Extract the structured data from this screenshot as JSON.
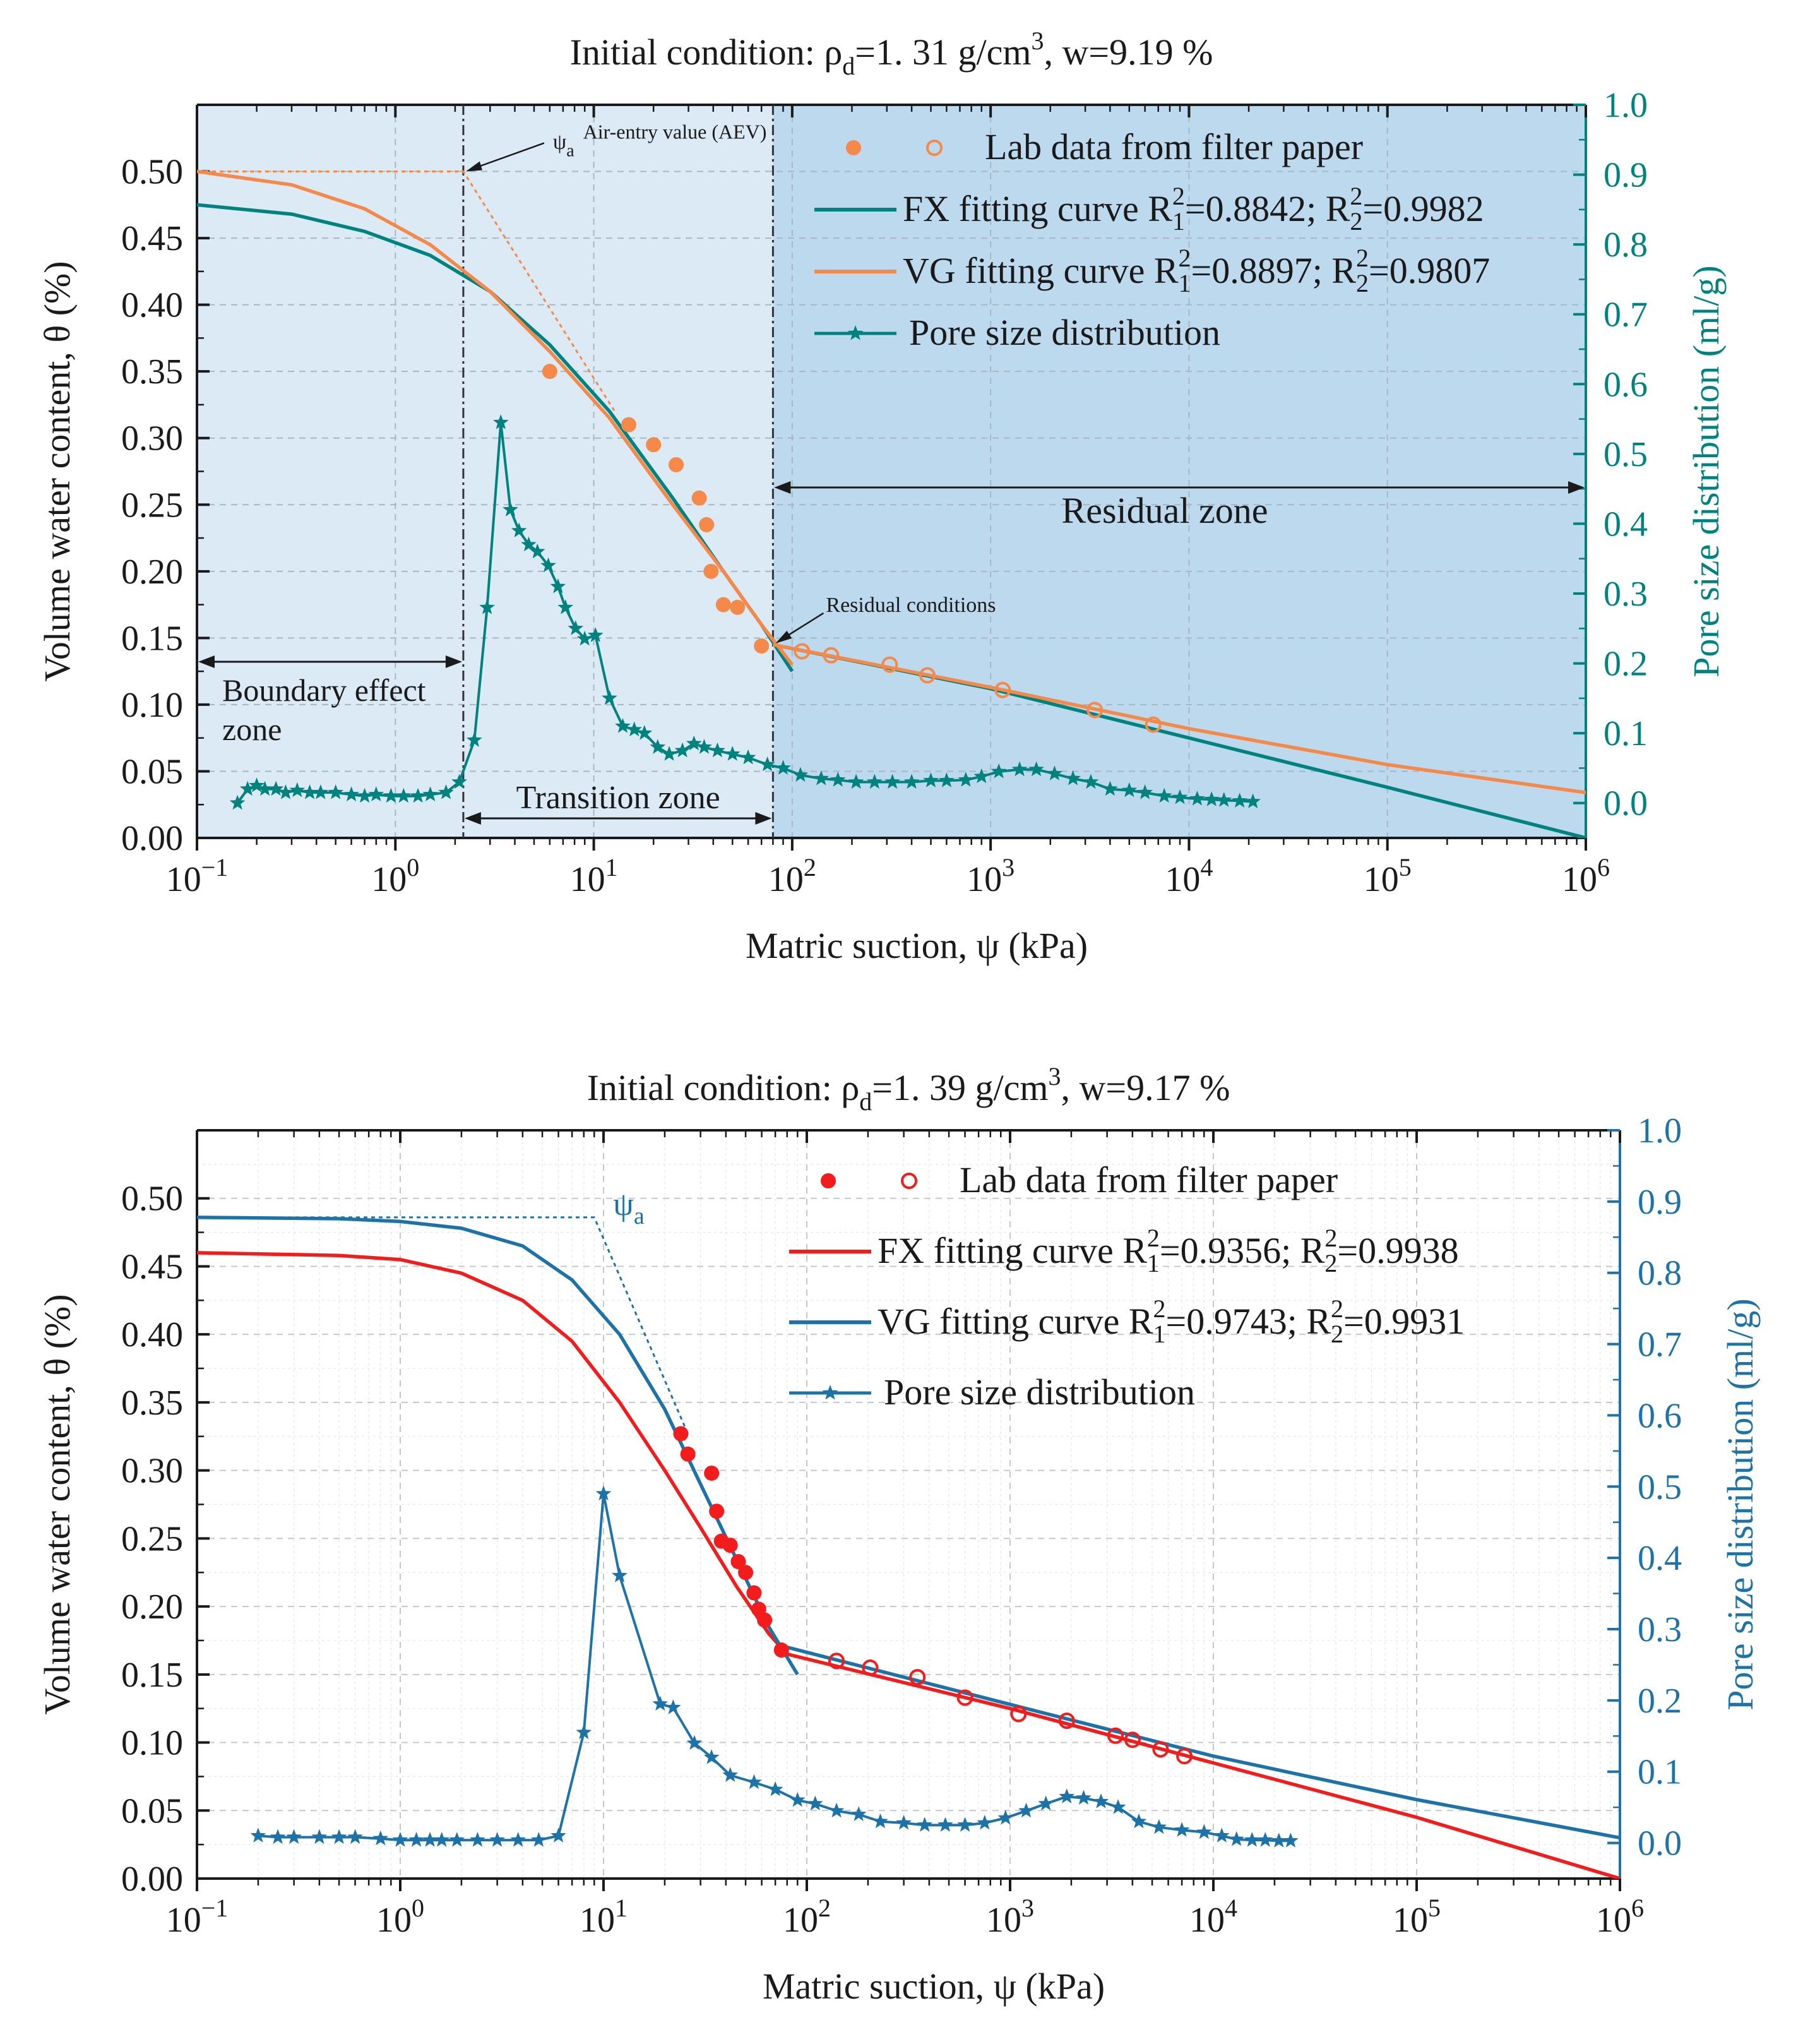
{
  "chart_data": [
    {
      "type": "line",
      "title_prefix": "Initial condition: ρ",
      "title_sub": "d",
      "title_mid": "=1. 31 g/cm",
      "title_sup": "3",
      "title_suffix": ",  w=9.19 %",
      "xlabel": "Matric suction, ψ (kPa)",
      "ylabel": "Volume water content, θ (%)",
      "y2label": "Pore size distribution (ml/g)",
      "xscale": "log",
      "xlim": [
        0.1,
        1000000
      ],
      "ylim": [
        0,
        0.55
      ],
      "y2lim": [
        -0.05,
        1.0
      ],
      "x_ticks": [
        {
          "base": "10",
          "exp": "−1"
        },
        {
          "base": "10",
          "exp": "0"
        },
        {
          "base": "10",
          "exp": "1"
        },
        {
          "base": "10",
          "exp": "2"
        },
        {
          "base": "10",
          "exp": "3"
        },
        {
          "base": "10",
          "exp": "4"
        },
        {
          "base": "10",
          "exp": "5"
        },
        {
          "base": "10",
          "exp": "6"
        }
      ],
      "y_ticks": [
        "0.00",
        "0.05",
        "0.10",
        "0.15",
        "0.20",
        "0.25",
        "0.30",
        "0.35",
        "0.40",
        "0.45",
        "0.50"
      ],
      "y2_ticks": [
        "0.0",
        "0.1",
        "0.2",
        "0.3",
        "0.4",
        "0.5",
        "0.6",
        "0.7",
        "0.8",
        "0.9",
        "1.0"
      ],
      "colors": {
        "fx": "#00827f",
        "vg": "#f5894a",
        "lab": "#f5894a",
        "psd": "#00827f",
        "right_axis": "#00827f",
        "zone_bg": "#dbeaf5",
        "residual_bg": "#bcd9ee"
      },
      "legend": {
        "lab": "Lab data from filter paper",
        "fx_label": "FX fitting curve R",
        "fx_r1": "=0.8842; R",
        "fx_r2": "=0.9982",
        "vg_label": "VG fitting curve  R",
        "vg_r1": "=0.8897; R",
        "vg_r2": "=0.9807",
        "psd": "Pore size distribution",
        "sup2": "2",
        "sub1": "1",
        "sub2": "2"
      },
      "annotations": {
        "aev_psi": "ψ",
        "aev_sub": "a",
        "aev_text": "Air-entry value (AEV)",
        "residual_conditions": "Residual conditions",
        "residual_zone": "Residual zone",
        "boundary_zone_1": "Boundary effect",
        "boundary_zone_2": "zone",
        "transition_zone": "Transition zone"
      },
      "aev": {
        "x": 2.2,
        "y": 0.5
      },
      "residual": {
        "x": 80,
        "y": 0.145
      },
      "lab_filled": [
        {
          "x": 6,
          "y": 0.35
        },
        {
          "x": 15,
          "y": 0.31
        },
        {
          "x": 20,
          "y": 0.295
        },
        {
          "x": 26,
          "y": 0.28
        },
        {
          "x": 34,
          "y": 0.255
        },
        {
          "x": 37,
          "y": 0.235
        },
        {
          "x": 39,
          "y": 0.2
        },
        {
          "x": 45,
          "y": 0.175
        },
        {
          "x": 53,
          "y": 0.173
        },
        {
          "x": 70,
          "y": 0.144
        }
      ],
      "lab_open": [
        {
          "x": 112,
          "y": 0.14
        },
        {
          "x": 157,
          "y": 0.137
        },
        {
          "x": 310,
          "y": 0.13
        },
        {
          "x": 480,
          "y": 0.122
        },
        {
          "x": 1150,
          "y": 0.111
        },
        {
          "x": 3350,
          "y": 0.096
        },
        {
          "x": 6600,
          "y": 0.085
        }
      ],
      "fx_curve": [
        {
          "x": 0.1,
          "y": 0.475
        },
        {
          "x": 0.3,
          "y": 0.468
        },
        {
          "x": 0.7,
          "y": 0.455
        },
        {
          "x": 1.5,
          "y": 0.437
        },
        {
          "x": 3,
          "y": 0.41
        },
        {
          "x": 6,
          "y": 0.37
        },
        {
          "x": 12,
          "y": 0.32
        },
        {
          "x": 25,
          "y": 0.255
        },
        {
          "x": 45,
          "y": 0.2
        },
        {
          "x": 70,
          "y": 0.16
        },
        {
          "x": 100,
          "y": 0.125
        }
      ],
      "fx_residual": [
        {
          "x": 80,
          "y": 0.145
        },
        {
          "x": 1000,
          "y": 0.112
        },
        {
          "x": 10000,
          "y": 0.075
        },
        {
          "x": 100000,
          "y": 0.038
        },
        {
          "x": 1000000,
          "y": 0.0
        }
      ],
      "vg_curve": [
        {
          "x": 0.1,
          "y": 0.5
        },
        {
          "x": 0.3,
          "y": 0.49
        },
        {
          "x": 0.7,
          "y": 0.472
        },
        {
          "x": 1.5,
          "y": 0.445
        },
        {
          "x": 3,
          "y": 0.41
        },
        {
          "x": 6,
          "y": 0.365
        },
        {
          "x": 12,
          "y": 0.315
        },
        {
          "x": 25,
          "y": 0.25
        },
        {
          "x": 45,
          "y": 0.2
        },
        {
          "x": 70,
          "y": 0.16
        },
        {
          "x": 100,
          "y": 0.13
        }
      ],
      "vg_residual": [
        {
          "x": 80,
          "y": 0.145
        },
        {
          "x": 1000,
          "y": 0.113
        },
        {
          "x": 10000,
          "y": 0.082
        },
        {
          "x": 100000,
          "y": 0.055
        },
        {
          "x": 1000000,
          "y": 0.034
        }
      ],
      "aev_tangent": [
        {
          "x": 0.1,
          "y": 0.5
        },
        {
          "x": 2.2,
          "y": 0.5
        },
        {
          "x": 13,
          "y": 0.318
        }
      ],
      "psd": [
        {
          "x": 0.16,
          "y": 0.0
        },
        {
          "x": 0.18,
          "y": 0.02
        },
        {
          "x": 0.2,
          "y": 0.025
        },
        {
          "x": 0.22,
          "y": 0.02
        },
        {
          "x": 0.25,
          "y": 0.02
        },
        {
          "x": 0.28,
          "y": 0.015
        },
        {
          "x": 0.32,
          "y": 0.018
        },
        {
          "x": 0.37,
          "y": 0.015
        },
        {
          "x": 0.42,
          "y": 0.015
        },
        {
          "x": 0.5,
          "y": 0.015
        },
        {
          "x": 0.6,
          "y": 0.012
        },
        {
          "x": 0.7,
          "y": 0.01
        },
        {
          "x": 0.8,
          "y": 0.012
        },
        {
          "x": 0.95,
          "y": 0.01
        },
        {
          "x": 1.1,
          "y": 0.01
        },
        {
          "x": 1.3,
          "y": 0.01
        },
        {
          "x": 1.5,
          "y": 0.012
        },
        {
          "x": 1.8,
          "y": 0.015
        },
        {
          "x": 2.1,
          "y": 0.03
        },
        {
          "x": 2.5,
          "y": 0.09
        },
        {
          "x": 2.9,
          "y": 0.28
        },
        {
          "x": 3.4,
          "y": 0.545
        },
        {
          "x": 3.8,
          "y": 0.42
        },
        {
          "x": 4.2,
          "y": 0.39
        },
        {
          "x": 4.7,
          "y": 0.37
        },
        {
          "x": 5.2,
          "y": 0.36
        },
        {
          "x": 5.9,
          "y": 0.34
        },
        {
          "x": 6.6,
          "y": 0.31
        },
        {
          "x": 7.2,
          "y": 0.28
        },
        {
          "x": 8.1,
          "y": 0.25
        },
        {
          "x": 9.0,
          "y": 0.235
        },
        {
          "x": 10.2,
          "y": 0.24
        },
        {
          "x": 12,
          "y": 0.15
        },
        {
          "x": 14,
          "y": 0.11
        },
        {
          "x": 16,
          "y": 0.105
        },
        {
          "x": 18,
          "y": 0.1
        },
        {
          "x": 21,
          "y": 0.08
        },
        {
          "x": 24,
          "y": 0.07
        },
        {
          "x": 28,
          "y": 0.075
        },
        {
          "x": 32,
          "y": 0.085
        },
        {
          "x": 36,
          "y": 0.08
        },
        {
          "x": 42,
          "y": 0.075
        },
        {
          "x": 50,
          "y": 0.07
        },
        {
          "x": 60,
          "y": 0.065
        },
        {
          "x": 75,
          "y": 0.055
        },
        {
          "x": 90,
          "y": 0.05
        },
        {
          "x": 110,
          "y": 0.04
        },
        {
          "x": 140,
          "y": 0.035
        },
        {
          "x": 170,
          "y": 0.033
        },
        {
          "x": 210,
          "y": 0.03
        },
        {
          "x": 260,
          "y": 0.03
        },
        {
          "x": 320,
          "y": 0.03
        },
        {
          "x": 400,
          "y": 0.03
        },
        {
          "x": 500,
          "y": 0.032
        },
        {
          "x": 600,
          "y": 0.032
        },
        {
          "x": 750,
          "y": 0.033
        },
        {
          "x": 900,
          "y": 0.038
        },
        {
          "x": 1100,
          "y": 0.045
        },
        {
          "x": 1400,
          "y": 0.048
        },
        {
          "x": 1700,
          "y": 0.048
        },
        {
          "x": 2100,
          "y": 0.042
        },
        {
          "x": 2600,
          "y": 0.035
        },
        {
          "x": 3200,
          "y": 0.03
        },
        {
          "x": 4000,
          "y": 0.02
        },
        {
          "x": 5000,
          "y": 0.018
        },
        {
          "x": 6000,
          "y": 0.015
        },
        {
          "x": 7500,
          "y": 0.01
        },
        {
          "x": 9000,
          "y": 0.008
        },
        {
          "x": 11000,
          "y": 0.006
        },
        {
          "x": 13000,
          "y": 0.005
        },
        {
          "x": 15000,
          "y": 0.004
        },
        {
          "x": 18000,
          "y": 0.003
        },
        {
          "x": 21000,
          "y": 0.002
        }
      ]
    },
    {
      "type": "line",
      "title_prefix": "Initial condition: ρ",
      "title_sub": "d",
      "title_mid": "=1. 39 g/cm",
      "title_sup": "3",
      "title_suffix": ",  w=9.17 %",
      "xlabel": "Matric suction, ψ (kPa)",
      "ylabel": "Volume water content, θ (%)",
      "y2label": "Pore size distribution (ml/g)",
      "xscale": "log",
      "xlim": [
        0.1,
        1000000
      ],
      "ylim": [
        0,
        0.55
      ],
      "y2lim": [
        -0.05,
        1.0
      ],
      "x_ticks": [
        {
          "base": "10",
          "exp": "−1"
        },
        {
          "base": "10",
          "exp": "0"
        },
        {
          "base": "10",
          "exp": "1"
        },
        {
          "base": "10",
          "exp": "2"
        },
        {
          "base": "10",
          "exp": "3"
        },
        {
          "base": "10",
          "exp": "4"
        },
        {
          "base": "10",
          "exp": "5"
        },
        {
          "base": "10",
          "exp": "6"
        }
      ],
      "y_ticks": [
        "0.00",
        "0.05",
        "0.10",
        "0.15",
        "0.20",
        "0.25",
        "0.30",
        "0.35",
        "0.40",
        "0.45",
        "0.50"
      ],
      "y2_ticks": [
        "0.0",
        "0.1",
        "0.2",
        "0.3",
        "0.4",
        "0.5",
        "0.6",
        "0.7",
        "0.8",
        "0.9",
        "1.0"
      ],
      "colors": {
        "fx": "#f21c1c",
        "vg": "#1d72a8",
        "lab": "#f21c1c",
        "psd": "#1d72a8",
        "right_axis": "#1d72a8"
      },
      "legend": {
        "lab": "Lab data from filter paper",
        "fx_label": "FX fitting curve  R",
        "fx_r1": "=0.9356; R",
        "fx_r2": "=0.9938",
        "vg_label": "VG fitting curve  R",
        "vg_r1": "=0.9743; R",
        "vg_r2": "=0.9931",
        "psd": "Pore size distribution",
        "sup2": "2",
        "sub1": "1",
        "sub2": "2"
      },
      "annotations": {
        "aev_psi": "ψ",
        "aev_sub": "a"
      },
      "lab_filled": [
        {
          "x": 24,
          "y": 0.327
        },
        {
          "x": 26,
          "y": 0.312
        },
        {
          "x": 34,
          "y": 0.298
        },
        {
          "x": 36,
          "y": 0.27
        },
        {
          "x": 38,
          "y": 0.248
        },
        {
          "x": 42,
          "y": 0.245
        },
        {
          "x": 46,
          "y": 0.233
        },
        {
          "x": 50,
          "y": 0.225
        },
        {
          "x": 55,
          "y": 0.21
        },
        {
          "x": 58,
          "y": 0.198
        },
        {
          "x": 62,
          "y": 0.19
        },
        {
          "x": 75,
          "y": 0.168
        }
      ],
      "lab_open": [
        {
          "x": 140,
          "y": 0.16
        },
        {
          "x": 205,
          "y": 0.155
        },
        {
          "x": 350,
          "y": 0.148
        },
        {
          "x": 600,
          "y": 0.133
        },
        {
          "x": 1100,
          "y": 0.121
        },
        {
          "x": 1900,
          "y": 0.116
        },
        {
          "x": 3300,
          "y": 0.105
        },
        {
          "x": 4000,
          "y": 0.102
        },
        {
          "x": 5500,
          "y": 0.095
        },
        {
          "x": 7200,
          "y": 0.09
        }
      ],
      "fx_curve": [
        {
          "x": 0.1,
          "y": 0.46
        },
        {
          "x": 0.5,
          "y": 0.458
        },
        {
          "x": 1,
          "y": 0.455
        },
        {
          "x": 2,
          "y": 0.445
        },
        {
          "x": 4,
          "y": 0.425
        },
        {
          "x": 7,
          "y": 0.395
        },
        {
          "x": 12,
          "y": 0.35
        },
        {
          "x": 20,
          "y": 0.3
        },
        {
          "x": 30,
          "y": 0.258
        },
        {
          "x": 45,
          "y": 0.215
        },
        {
          "x": 65,
          "y": 0.18
        },
        {
          "x": 80,
          "y": 0.165
        }
      ],
      "fx_residual": [
        {
          "x": 80,
          "y": 0.165
        },
        {
          "x": 1000,
          "y": 0.125
        },
        {
          "x": 10000,
          "y": 0.085
        },
        {
          "x": 100000,
          "y": 0.045
        },
        {
          "x": 1000000,
          "y": 0.0
        }
      ],
      "vg_curve": [
        {
          "x": 0.1,
          "y": 0.486
        },
        {
          "x": 0.5,
          "y": 0.485
        },
        {
          "x": 1,
          "y": 0.483
        },
        {
          "x": 2,
          "y": 0.478
        },
        {
          "x": 4,
          "y": 0.465
        },
        {
          "x": 7,
          "y": 0.44
        },
        {
          "x": 12,
          "y": 0.4
        },
        {
          "x": 20,
          "y": 0.345
        },
        {
          "x": 30,
          "y": 0.29
        },
        {
          "x": 45,
          "y": 0.235
        },
        {
          "x": 65,
          "y": 0.185
        },
        {
          "x": 90,
          "y": 0.15
        }
      ],
      "vg_residual": [
        {
          "x": 80,
          "y": 0.17
        },
        {
          "x": 1000,
          "y": 0.128
        },
        {
          "x": 10000,
          "y": 0.09
        },
        {
          "x": 100000,
          "y": 0.058
        },
        {
          "x": 1000000,
          "y": 0.03
        }
      ],
      "aev_tangent": [
        {
          "x": 0.1,
          "y": 0.486
        },
        {
          "x": 9,
          "y": 0.486
        },
        {
          "x": 26,
          "y": 0.327
        }
      ],
      "psd": [
        {
          "x": 0.2,
          "y": 0.01
        },
        {
          "x": 0.25,
          "y": 0.008
        },
        {
          "x": 0.3,
          "y": 0.008
        },
        {
          "x": 0.4,
          "y": 0.008
        },
        {
          "x": 0.5,
          "y": 0.008
        },
        {
          "x": 0.6,
          "y": 0.008
        },
        {
          "x": 0.8,
          "y": 0.006
        },
        {
          "x": 1.0,
          "y": 0.004
        },
        {
          "x": 1.2,
          "y": 0.004
        },
        {
          "x": 1.4,
          "y": 0.004
        },
        {
          "x": 1.6,
          "y": 0.004
        },
        {
          "x": 1.9,
          "y": 0.004
        },
        {
          "x": 2.4,
          "y": 0.004
        },
        {
          "x": 3.0,
          "y": 0.004
        },
        {
          "x": 3.8,
          "y": 0.004
        },
        {
          "x": 4.8,
          "y": 0.004
        },
        {
          "x": 6.0,
          "y": 0.01
        },
        {
          "x": 8.0,
          "y": 0.155
        },
        {
          "x": 10,
          "y": 0.49
        },
        {
          "x": 12,
          "y": 0.375
        },
        {
          "x": 19,
          "y": 0.195
        },
        {
          "x": 22,
          "y": 0.19
        },
        {
          "x": 28,
          "y": 0.14
        },
        {
          "x": 34,
          "y": 0.12
        },
        {
          "x": 42,
          "y": 0.095
        },
        {
          "x": 55,
          "y": 0.085
        },
        {
          "x": 70,
          "y": 0.075
        },
        {
          "x": 90,
          "y": 0.06
        },
        {
          "x": 110,
          "y": 0.055
        },
        {
          "x": 140,
          "y": 0.045
        },
        {
          "x": 180,
          "y": 0.04
        },
        {
          "x": 230,
          "y": 0.03
        },
        {
          "x": 300,
          "y": 0.028
        },
        {
          "x": 380,
          "y": 0.025
        },
        {
          "x": 480,
          "y": 0.025
        },
        {
          "x": 600,
          "y": 0.025
        },
        {
          "x": 750,
          "y": 0.028
        },
        {
          "x": 950,
          "y": 0.035
        },
        {
          "x": 1200,
          "y": 0.045
        },
        {
          "x": 1500,
          "y": 0.055
        },
        {
          "x": 1900,
          "y": 0.065
        },
        {
          "x": 2300,
          "y": 0.063
        },
        {
          "x": 2800,
          "y": 0.058
        },
        {
          "x": 3400,
          "y": 0.05
        },
        {
          "x": 4300,
          "y": 0.03
        },
        {
          "x": 5400,
          "y": 0.022
        },
        {
          "x": 7000,
          "y": 0.018
        },
        {
          "x": 9000,
          "y": 0.015
        },
        {
          "x": 11000,
          "y": 0.01
        },
        {
          "x": 13000,
          "y": 0.005
        },
        {
          "x": 15500,
          "y": 0.004
        },
        {
          "x": 18000,
          "y": 0.004
        },
        {
          "x": 21000,
          "y": 0.003
        },
        {
          "x": 24000,
          "y": 0.003
        }
      ]
    }
  ]
}
